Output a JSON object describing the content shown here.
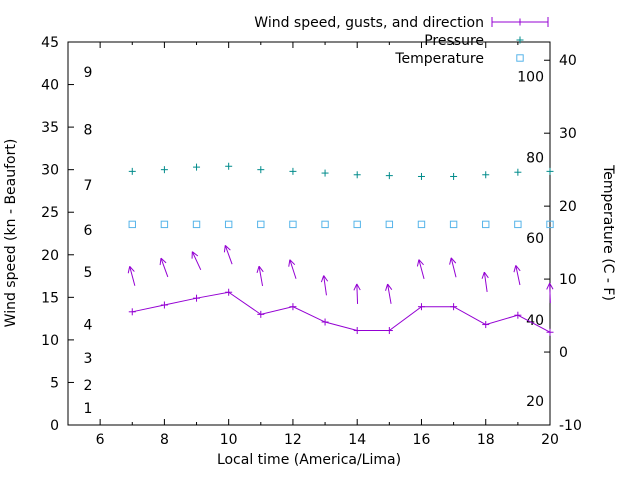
{
  "chart_data": {
    "type": "line",
    "title": "",
    "x_label": "Local time (America/Lima)",
    "y_left_label": "Wind speed (kn - Beaufort)",
    "y_right_label": "Temperature (C - F)",
    "x_range": [
      5,
      20
    ],
    "x_hours": [
      7,
      8,
      9,
      10,
      11,
      12,
      13,
      14,
      15,
      16,
      17,
      18,
      19,
      20
    ],
    "x_tick_step_labeled": 2,
    "y_left_range": [
      0,
      45
    ],
    "y_left_ticks": [
      0,
      5,
      10,
      15,
      20,
      25,
      30,
      35,
      40,
      45
    ],
    "y_right_range_c": [
      -10,
      42.5
    ],
    "y_right_ticks_c": [
      -10,
      0,
      10,
      20,
      30,
      40
    ],
    "beaufort_labels": [
      {
        "label": "1",
        "kn": 2
      },
      {
        "label": "2",
        "kn": 4.7
      },
      {
        "label": "3",
        "kn": 7.9
      },
      {
        "label": "4",
        "kn": 11.8
      },
      {
        "label": "5",
        "kn": 18
      },
      {
        "label": "6",
        "kn": 22.9
      },
      {
        "label": "7",
        "kn": 28.2
      },
      {
        "label": "8",
        "kn": 34.7
      },
      {
        "label": "9",
        "kn": 41.5
      }
    ],
    "fahrenheit_labels": [
      {
        "label": "20",
        "c": -6.7
      },
      {
        "label": "40",
        "c": 4.4
      },
      {
        "label": "60",
        "c": 15.6
      },
      {
        "label": "80",
        "c": 26.7
      },
      {
        "label": "100",
        "c": 37.8
      }
    ],
    "series": [
      {
        "name": "Wind speed, gusts, and direction",
        "type": "wind",
        "color": "#9400d3",
        "wind_kn": [
          13.3,
          14.1,
          14.9,
          15.6,
          13.0,
          13.9,
          12.1,
          11.1,
          11.1,
          13.9,
          13.9,
          11.8,
          12.9,
          10.9
        ],
        "gust_kn": [
          17.5,
          18.5,
          19.3,
          20.0,
          17.5,
          18.3,
          16.4,
          15.4,
          15.4,
          18.3,
          18.5,
          16.8,
          17.6,
          15.5
        ],
        "dir_from_deg": [
          165,
          160,
          155,
          160,
          170,
          162,
          172,
          178,
          170,
          165,
          166,
          172,
          168,
          178
        ]
      },
      {
        "name": "Pressure",
        "type": "points",
        "marker": "plus",
        "color": "#008b8b",
        "values_left_scale": [
          29.8,
          30.0,
          30.3,
          30.4,
          30.0,
          29.8,
          29.6,
          29.4,
          29.3,
          29.2,
          29.2,
          29.4,
          29.7,
          29.8
        ]
      },
      {
        "name": "Temperature",
        "type": "points",
        "marker": "square-open",
        "color": "#56b4e9",
        "values_c": [
          17.5,
          17.5,
          17.5,
          17.5,
          17.5,
          17.5,
          17.5,
          17.5,
          17.5,
          17.5,
          17.5,
          17.5,
          17.5,
          17.5
        ]
      }
    ],
    "legend_position": "top-right",
    "grid": false
  }
}
